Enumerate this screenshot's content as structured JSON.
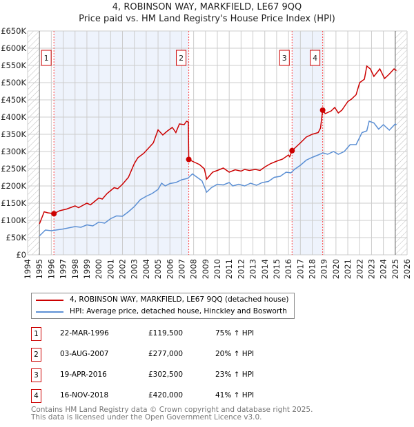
{
  "chart_data": {
    "type": "line",
    "title": "4, ROBINSON WAY, MARKFIELD, LE67 9QQ",
    "subtitle": "Price paid vs. HM Land Registry's House Price Index (HPI)",
    "xlim": [
      1994,
      2026
    ],
    "ylim": [
      0,
      650000
    ],
    "x_ticks": [
      "1994",
      "1995",
      "1996",
      "1997",
      "1998",
      "1999",
      "2000",
      "2001",
      "2002",
      "2003",
      "2004",
      "2005",
      "2006",
      "2007",
      "2008",
      "2009",
      "2010",
      "2011",
      "2012",
      "2013",
      "2014",
      "2015",
      "2016",
      "2017",
      "2018",
      "2019",
      "2020",
      "2021",
      "2022",
      "2023",
      "2024",
      "2025",
      "2026"
    ],
    "y_ticks": [
      "£0",
      "£50K",
      "£100K",
      "£150K",
      "£200K",
      "£250K",
      "£300K",
      "£350K",
      "£400K",
      "£450K",
      "£500K",
      "£550K",
      "£600K",
      "£650K"
    ],
    "grid": true,
    "series": [
      {
        "name": "4, ROBINSON WAY, MARKFIELD, LE67 9QQ (detached house)",
        "color": "#cc0000",
        "x": [
          1995,
          1995.4,
          1995.7,
          1996.22,
          1996.7,
          1997.3,
          1998,
          1998.3,
          1999,
          1999.3,
          2000,
          2000.3,
          2000.7,
          2001.3,
          2001.6,
          2002,
          2002.5,
          2003,
          2003.3,
          2003.8,
          2004.2,
          2004.6,
          2005,
          2005.4,
          2005.8,
          2006.2,
          2006.5,
          2006.8,
          2007.2,
          2007.4,
          2007.55,
          2007.59,
          2008,
          2008.5,
          2008.9,
          2009.1,
          2009.6,
          2010,
          2010.5,
          2011,
          2011.5,
          2012,
          2012.3,
          2012.7,
          2013.2,
          2013.6,
          2014,
          2014.5,
          2015,
          2015.5,
          2016,
          2016.1,
          2016.3,
          2017,
          2017.5,
          2018,
          2018.5,
          2018.7,
          2018.88,
          2019.1,
          2019.6,
          2019.9,
          2020.2,
          2020.5,
          2021,
          2021.3,
          2021.7,
          2022,
          2022.4,
          2022.6,
          2022.9,
          2023.2,
          2023.7,
          2024.1,
          2024.5,
          2024.9,
          2025.1
        ],
        "y": [
          90000,
          125000,
          122000,
          119500,
          128000,
          133000,
          142000,
          137000,
          150000,
          145000,
          165000,
          162000,
          178000,
          195000,
          192000,
          205000,
          225000,
          265000,
          282000,
          295000,
          310000,
          325000,
          363000,
          348000,
          360000,
          370000,
          355000,
          380000,
          378000,
          388000,
          386000,
          277000,
          270000,
          262000,
          250000,
          220000,
          240000,
          245000,
          252000,
          240000,
          247000,
          243000,
          248000,
          245000,
          248000,
          245000,
          255000,
          265000,
          272000,
          278000,
          290000,
          285000,
          302500,
          325000,
          342000,
          350000,
          355000,
          368000,
          420000,
          410000,
          418000,
          428000,
          412000,
          420000,
          445000,
          452000,
          465000,
          500000,
          510000,
          548000,
          540000,
          518000,
          540000,
          512000,
          525000,
          540000,
          535000
        ]
      },
      {
        "name": "HPI: Average price, detached house, Hinckley and Bosworth",
        "color": "#5b8fd4",
        "x": [
          1995,
          1995.5,
          1996,
          1997,
          1998,
          1998.5,
          1999,
          1999.5,
          2000,
          2000.5,
          2001,
          2001.5,
          2002,
          2002.5,
          2003,
          2003.5,
          2004,
          2004.5,
          2005,
          2005.3,
          2005.6,
          2006,
          2006.5,
          2007,
          2007.5,
          2007.9,
          2008.3,
          2008.7,
          2009.1,
          2009.5,
          2010,
          2010.5,
          2011,
          2011.3,
          2011.8,
          2012.3,
          2012.8,
          2013.3,
          2013.8,
          2014.3,
          2014.8,
          2015.3,
          2015.8,
          2016.2,
          2016.5,
          2017,
          2017.5,
          2018,
          2018.5,
          2018.9,
          2019.3,
          2019.8,
          2020.2,
          2020.7,
          2021.2,
          2021.7,
          2022.2,
          2022.6,
          2022.8,
          2023.2,
          2023.6,
          2024,
          2024.5,
          2025,
          2025.1
        ],
        "y": [
          55000,
          72000,
          70000,
          75000,
          82000,
          80000,
          87000,
          84000,
          95000,
          92000,
          105000,
          113000,
          112000,
          125000,
          140000,
          160000,
          170000,
          178000,
          190000,
          208000,
          200000,
          207000,
          210000,
          218000,
          222000,
          235000,
          225000,
          215000,
          182000,
          195000,
          205000,
          203000,
          210000,
          200000,
          205000,
          200000,
          208000,
          202000,
          210000,
          213000,
          225000,
          228000,
          240000,
          238000,
          248000,
          260000,
          275000,
          283000,
          290000,
          296000,
          292000,
          300000,
          292000,
          300000,
          320000,
          320000,
          355000,
          360000,
          388000,
          383000,
          365000,
          378000,
          362000,
          380000,
          378000
        ]
      }
    ],
    "sales": [
      {
        "label": "1",
        "x": 1996.22,
        "y": 119500,
        "date": "22-MAR-1996",
        "price": "£119,500",
        "hpi": "75% ↑ HPI"
      },
      {
        "label": "2",
        "x": 2007.59,
        "y": 277000,
        "date": "03-AUG-2007",
        "price": "£277,000",
        "hpi": "20% ↑ HPI"
      },
      {
        "label": "3",
        "x": 2016.3,
        "y": 302500,
        "date": "19-APR-2016",
        "price": "£302,500",
        "hpi": "23% ↑ HPI"
      },
      {
        "label": "4",
        "x": 2018.88,
        "y": 420000,
        "date": "16-NOV-2018",
        "price": "£420,000",
        "hpi": "41% ↑ HPI"
      }
    ],
    "shaded_ranges": [
      [
        1996.22,
        2007.59
      ],
      [
        2016.3,
        2018.88
      ]
    ],
    "hatched_ranges": [
      [
        1994,
        1995
      ],
      [
        2025,
        2026
      ]
    ]
  },
  "footer": [
    "Contains HM Land Registry data © Crown copyright and database right 2025.",
    "This data is licensed under the Open Government Licence v3.0."
  ]
}
